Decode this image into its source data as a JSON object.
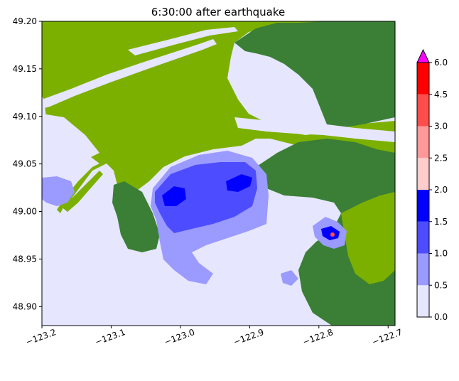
{
  "chart_data": {
    "type": "heatmap",
    "title": "6:30:00 after earthquake",
    "xlim": [
      -123.2,
      -122.69
    ],
    "ylim": [
      48.88,
      49.2
    ],
    "x_ticks": [
      {
        "value": -123.2,
        "label": "−123.2"
      },
      {
        "value": -123.1,
        "label": "−123.1"
      },
      {
        "value": -123.0,
        "label": "−123.0"
      },
      {
        "value": -122.9,
        "label": "−122.9"
      },
      {
        "value": -122.8,
        "label": "−122.8"
      },
      {
        "value": -122.7,
        "label": "−122.7"
      }
    ],
    "y_ticks": [
      {
        "value": 49.2,
        "label": "49.20"
      },
      {
        "value": 49.15,
        "label": "49.15"
      },
      {
        "value": 49.1,
        "label": "49.10"
      },
      {
        "value": 49.05,
        "label": "49.05"
      },
      {
        "value": 49.0,
        "label": "49.00"
      },
      {
        "value": 48.95,
        "label": "48.95"
      },
      {
        "value": 48.9,
        "label": "48.90"
      }
    ],
    "colorbar": {
      "levels": [
        0.0,
        0.5,
        1.0,
        1.5,
        2.0,
        2.5,
        3.0,
        4.5,
        6.0
      ],
      "labels": [
        "0.0",
        "0.5",
        "1.0",
        "1.5",
        "2.0",
        "2.5",
        "3.0",
        "4.5",
        "6.0"
      ],
      "colors": [
        "#e6e6ff",
        "#9a9aff",
        "#4d4dff",
        "#0000ff",
        "#ffcccc",
        "#ff9999",
        "#ff4d4d",
        "#ff0000"
      ],
      "extend_color": "#ff00ff"
    },
    "land_colors": {
      "lowland": "#7cb000",
      "highland": "#3a7f35"
    },
    "water_zones": [
      {
        "level": "0.5-1.0",
        "lon": [
          -123.02,
          -122.88
        ],
        "lat": [
          48.96,
          49.065
        ]
      },
      {
        "level": "1.0-1.5",
        "lon": [
          -123.01,
          -122.88
        ],
        "lat": [
          48.995,
          49.06
        ]
      },
      {
        "level": "1.5-2.0",
        "lon": [
          -123.0,
          -122.91
        ],
        "lat": [
          49.02,
          49.05
        ]
      }
    ]
  }
}
